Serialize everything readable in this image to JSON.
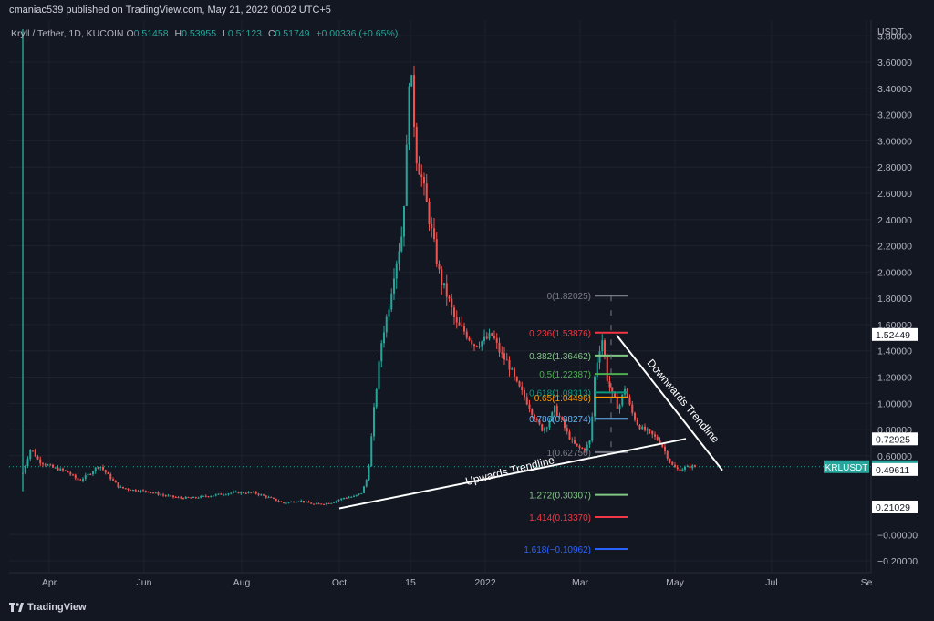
{
  "header": {
    "published": "cmaniac539 published on TradingView.com, May 21, 2022 00:02 UTC+5"
  },
  "symbol": {
    "title": "Kryll / Tether, 1D, KUCOIN",
    "open_label": "O",
    "open": "0.51458",
    "high_label": "H",
    "high": "0.53955",
    "low_label": "L",
    "low": "0.51123",
    "close_label": "C",
    "close": "0.51749",
    "change": "+0.00336 (+0.65%)",
    "ticker": "KRLUSDT",
    "last_price": "0.51749"
  },
  "colors": {
    "background": "#131722",
    "up": "#26a69a",
    "down": "#ef5350",
    "grid": "#1e222d",
    "text": "#b2b5be"
  },
  "chart_data": {
    "type": "candlestick",
    "y_unit": "USDT",
    "ylim": [
      -0.29,
      3.92
    ],
    "y_ticks": [
      "3.80000",
      "3.60000",
      "3.40000",
      "3.20000",
      "3.00000",
      "2.80000",
      "2.60000",
      "2.40000",
      "2.20000",
      "2.00000",
      "1.80000",
      "1.60000",
      "1.40000",
      "1.20000",
      "1.00000",
      "0.80000",
      "0.60000",
      "−0.00000",
      "−0.20000"
    ],
    "x_ticks": [
      "Apr",
      "Jun",
      "Aug",
      "Oct",
      "15",
      "2022",
      "Mar",
      "May",
      "Jul",
      "Se"
    ],
    "price_labels": [
      {
        "value": "1.52449",
        "y": 1.52449
      },
      {
        "value": "0.72925",
        "y": 0.72925
      },
      {
        "value": "0.49611",
        "y": 0.49611
      },
      {
        "value": "0.21029",
        "y": 0.21029
      }
    ],
    "fib_levels": [
      {
        "label": "0(1.82025)",
        "value": 1.82025,
        "color": "#787b86"
      },
      {
        "label": "0.236(1.53876)",
        "value": 1.53876,
        "color": "#f23645"
      },
      {
        "label": "0.382(1.36462)",
        "value": 1.36462,
        "color": "#81c784"
      },
      {
        "label": "0.5(1.22387)",
        "value": 1.22387,
        "color": "#4caf50"
      },
      {
        "label": "0.618(1.08313)",
        "value": 1.08313,
        "color": "#089981"
      },
      {
        "label": "0.65(1.04496)",
        "value": 1.04496,
        "color": "#ff9800"
      },
      {
        "label": "0.786(0.88274)",
        "value": 0.88274,
        "color": "#64b5f6"
      },
      {
        "label": "1(0.62750)",
        "value": 0.6275,
        "color": "#787b86"
      },
      {
        "label": "1.272(0.30307)",
        "value": 0.30307,
        "color": "#81c784"
      },
      {
        "label": "1.414(0.13370)",
        "value": 0.1337,
        "color": "#f23645"
      },
      {
        "label": "1.618(−0.10962)",
        "value": -0.10962,
        "color": "#2962ff"
      }
    ],
    "annotations": [
      {
        "text": "Upwards Trendline"
      },
      {
        "text": "Downwards Trendline"
      }
    ],
    "price_path": [
      [
        0.0,
        0.47
      ],
      [
        0.4,
        0.66
      ],
      [
        0.8,
        0.56
      ],
      [
        1.5,
        0.51
      ],
      [
        2.2,
        0.48
      ],
      [
        2.8,
        0.41
      ],
      [
        3.3,
        0.46
      ],
      [
        3.8,
        0.53
      ],
      [
        4.2,
        0.46
      ],
      [
        4.8,
        0.36
      ],
      [
        5.5,
        0.34
      ],
      [
        6.2,
        0.33
      ],
      [
        7.0,
        0.3
      ],
      [
        7.8,
        0.28
      ],
      [
        8.5,
        0.28
      ],
      [
        9.5,
        0.3
      ],
      [
        10.5,
        0.32
      ],
      [
        11.5,
        0.32
      ],
      [
        12.3,
        0.28
      ],
      [
        13.0,
        0.24
      ],
      [
        13.8,
        0.26
      ],
      [
        14.5,
        0.23
      ],
      [
        15.3,
        0.24
      ],
      [
        16.0,
        0.28
      ],
      [
        16.5,
        0.29
      ],
      [
        16.9,
        0.32
      ],
      [
        17.2,
        0.45
      ],
      [
        17.5,
        0.95
      ],
      [
        17.9,
        1.5
      ],
      [
        18.2,
        1.7
      ],
      [
        18.5,
        2.0
      ],
      [
        18.9,
        2.3
      ],
      [
        19.1,
        2.8
      ],
      [
        19.25,
        3.5
      ],
      [
        19.4,
        3.4
      ],
      [
        19.6,
        2.9
      ],
      [
        19.9,
        2.7
      ],
      [
        20.2,
        2.45
      ],
      [
        20.5,
        2.2
      ],
      [
        20.8,
        1.95
      ],
      [
        21.2,
        1.8
      ],
      [
        21.6,
        1.6
      ],
      [
        22.0,
        1.55
      ],
      [
        22.5,
        1.45
      ],
      [
        23.0,
        1.48
      ],
      [
        23.4,
        1.52
      ],
      [
        23.8,
        1.38
      ],
      [
        24.2,
        1.3
      ],
      [
        24.6,
        1.15
      ],
      [
        25.0,
        1.05
      ],
      [
        25.3,
        0.96
      ],
      [
        25.6,
        0.86
      ],
      [
        25.9,
        0.8
      ],
      [
        26.2,
        0.85
      ],
      [
        26.5,
        0.96
      ],
      [
        26.8,
        0.88
      ],
      [
        27.1,
        0.78
      ],
      [
        27.4,
        0.7
      ],
      [
        27.7,
        0.66
      ],
      [
        28.0,
        0.65
      ],
      [
        28.3,
        0.72
      ],
      [
        28.5,
        1.2
      ],
      [
        28.7,
        1.4
      ],
      [
        28.9,
        1.5
      ],
      [
        29.1,
        1.2
      ],
      [
        29.4,
        1.05
      ],
      [
        29.7,
        0.96
      ],
      [
        30.0,
        1.12
      ],
      [
        30.3,
        0.95
      ],
      [
        30.6,
        0.85
      ],
      [
        30.9,
        0.8
      ],
      [
        31.2,
        0.78
      ],
      [
        31.5,
        0.74
      ],
      [
        31.8,
        0.7
      ],
      [
        32.1,
        0.6
      ],
      [
        32.4,
        0.52
      ],
      [
        32.7,
        0.49
      ],
      [
        33.0,
        0.51
      ],
      [
        33.3,
        0.52
      ],
      [
        33.6,
        0.5175
      ]
    ]
  }
}
